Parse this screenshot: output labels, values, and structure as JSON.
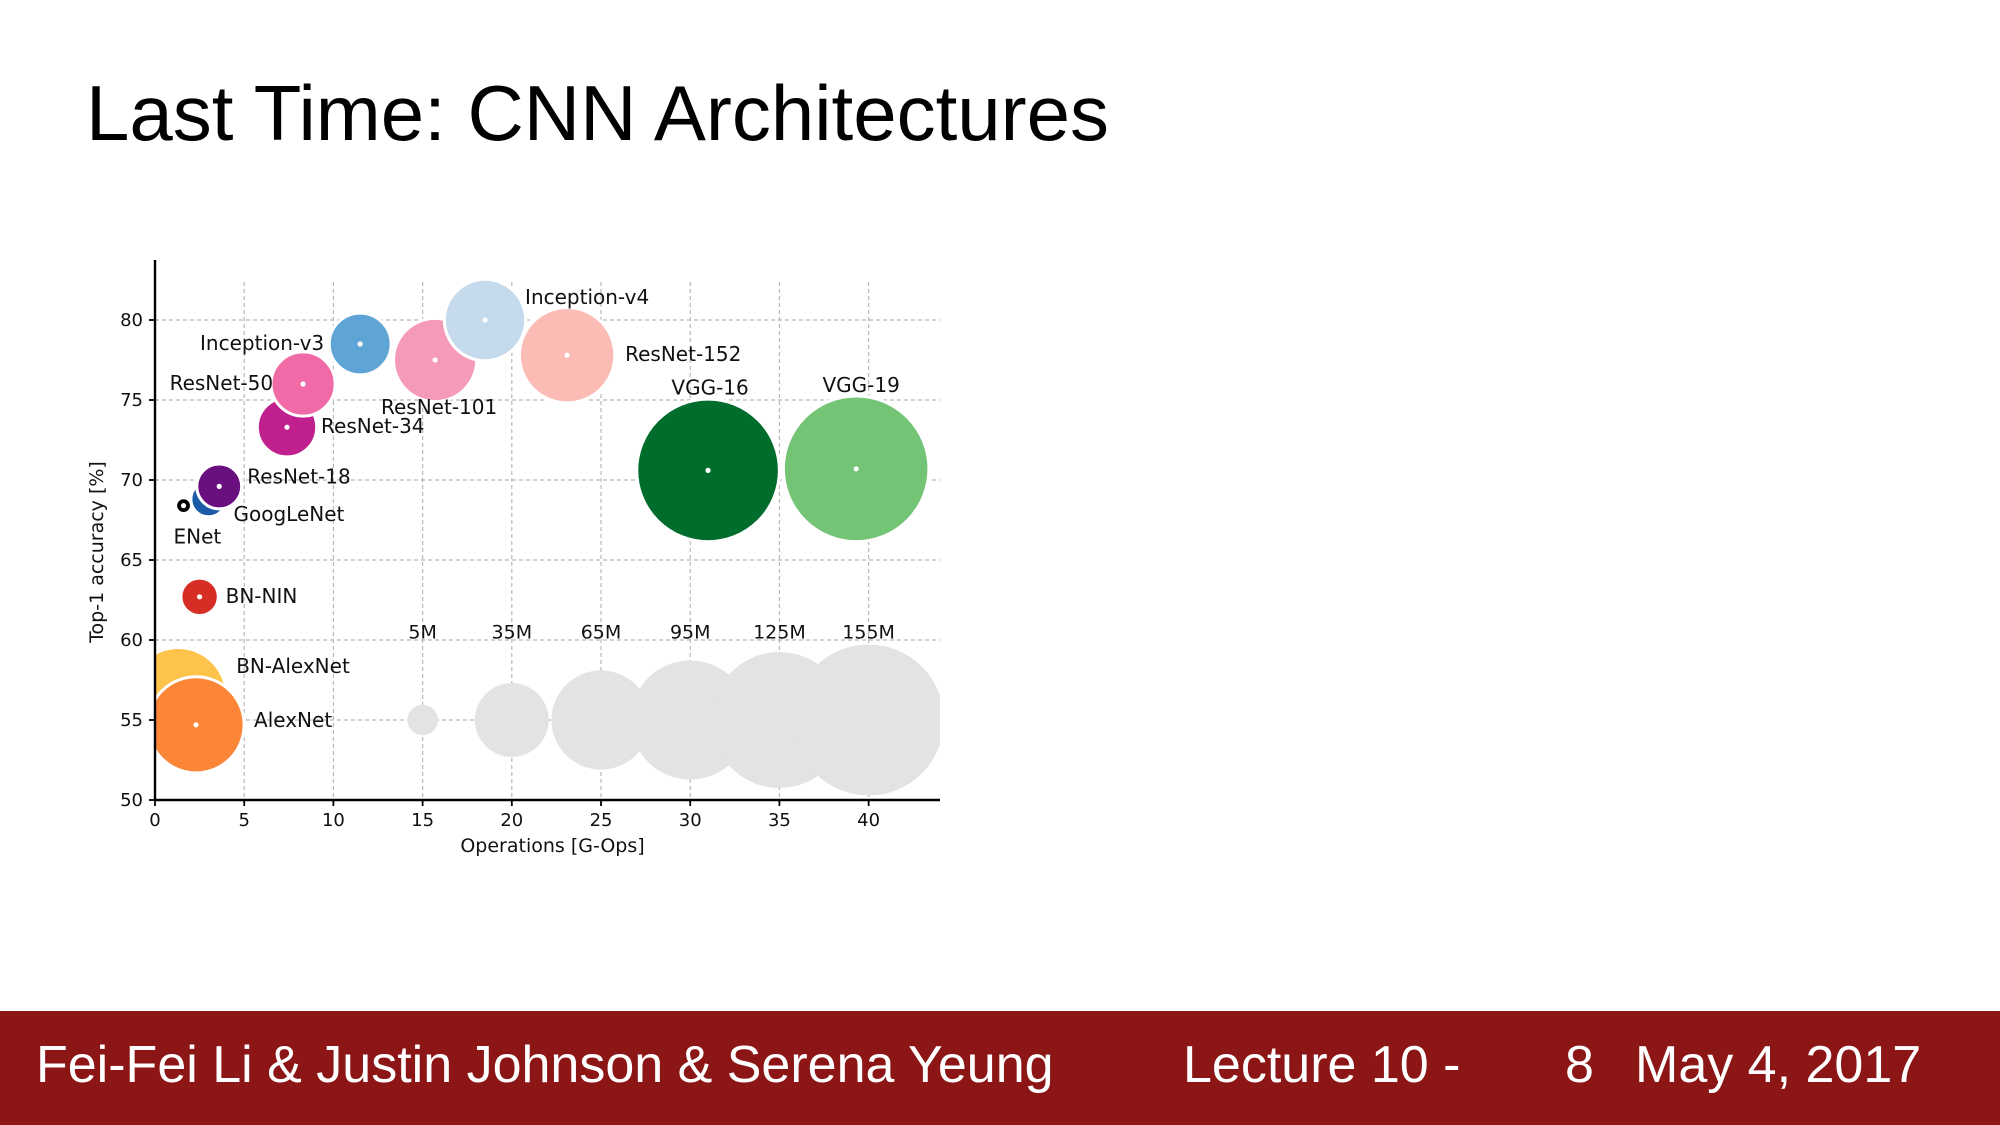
{
  "slide": {
    "title": "Last Time: CNN Architectures"
  },
  "footer": {
    "authors": "Fei-Fei Li & Justin Johnson & Serena Yeung",
    "lecture": "Lecture 10 -",
    "page": "8",
    "date": "May 4, 2017"
  },
  "chart_data": {
    "type": "scatter",
    "title": "",
    "xlabel": "Operations [G-Ops]",
    "ylabel": "Top-1 accuracy [%]",
    "xlim": [
      0,
      44
    ],
    "ylim": [
      50,
      82
    ],
    "xticks": [
      0,
      5,
      10,
      15,
      20,
      25,
      30,
      35,
      40
    ],
    "yticks": [
      50,
      55,
      60,
      65,
      70,
      75,
      80
    ],
    "grid": true,
    "points": [
      {
        "name": "BN-AlexNet",
        "x": 1.3,
        "y": 56.5,
        "params_m": 62,
        "color": "#fdc34a"
      },
      {
        "name": "AlexNet",
        "x": 2.3,
        "y": 54.7,
        "params_m": 61,
        "color": "#fb8637"
      },
      {
        "name": "BN-NIN",
        "x": 2.5,
        "y": 62.7,
        "params_m": 8,
        "color": "#d62d24"
      },
      {
        "name": "ENet",
        "x": 1.6,
        "y": 68.4,
        "params_m": 1,
        "color": "#000000"
      },
      {
        "name": "GoogLeNet",
        "x": 3.0,
        "y": 68.8,
        "params_m": 7,
        "color": "#1a5aa6"
      },
      {
        "name": "ResNet-18",
        "x": 3.6,
        "y": 69.6,
        "params_m": 12,
        "color": "#6a0f80"
      },
      {
        "name": "ResNet-34",
        "x": 7.4,
        "y": 73.3,
        "params_m": 22,
        "color": "#c0208e"
      },
      {
        "name": "ResNet-50",
        "x": 8.3,
        "y": 76.0,
        "params_m": 26,
        "color": "#f06aa7"
      },
      {
        "name": "Inception-v3",
        "x": 11.5,
        "y": 78.5,
        "params_m": 24,
        "color": "#5ea5d6"
      },
      {
        "name": "ResNet-101",
        "x": 15.7,
        "y": 77.5,
        "params_m": 45,
        "color": "#f69ab9"
      },
      {
        "name": "Inception-v4",
        "x": 18.5,
        "y": 80.0,
        "params_m": 43,
        "color": "#c6daee"
      },
      {
        "name": "ResNet-152",
        "x": 23.1,
        "y": 77.8,
        "params_m": 60,
        "color": "#fbbcb6"
      },
      {
        "name": "VGG-16",
        "x": 31.0,
        "y": 70.6,
        "params_m": 138,
        "color": "#006d2c"
      },
      {
        "name": "VGG-19",
        "x": 39.3,
        "y": 70.7,
        "params_m": 144,
        "color": "#74c476"
      }
    ],
    "size_legend": {
      "y": 55,
      "color": "#e3e3e3",
      "items": [
        {
          "label": "5M",
          "x": 15,
          "params_m": 5
        },
        {
          "label": "35M",
          "x": 20,
          "params_m": 35
        },
        {
          "label": "65M",
          "x": 25,
          "params_m": 65
        },
        {
          "label": "95M",
          "x": 30,
          "params_m": 95
        },
        {
          "label": "125M",
          "x": 35,
          "params_m": 125
        },
        {
          "label": "155M",
          "x": 40,
          "params_m": 155
        }
      ]
    }
  }
}
